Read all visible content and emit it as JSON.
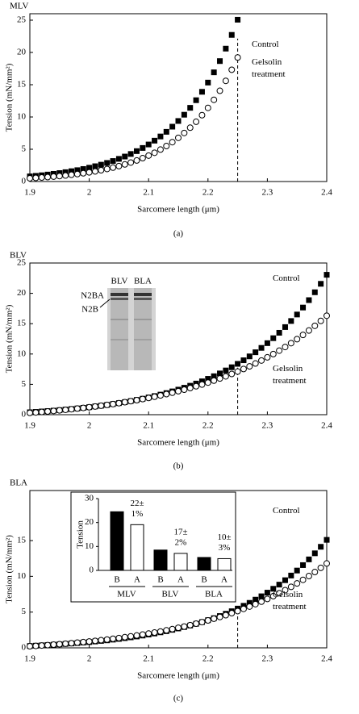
{
  "chart_data": [
    {
      "type": "line",
      "title": "MLV",
      "caption": "(a)",
      "xlabel": "Sarcomere length (μm)",
      "ylabel": "Tension (mN/mm²)",
      "x": [
        1.9,
        1.91,
        1.92,
        1.93,
        1.94,
        1.95,
        1.96,
        1.97,
        1.98,
        1.99,
        2,
        2.01,
        2.02,
        2.03,
        2.04,
        2.05,
        2.06,
        2.07,
        2.08,
        2.09,
        2.1,
        2.11,
        2.12,
        2.13,
        2.14,
        2.15,
        2.16,
        2.17,
        2.18,
        2.19,
        2.2,
        2.21,
        2.22,
        2.23,
        2.24,
        2.25
      ],
      "series": [
        {
          "name": "Control",
          "color": "#000000",
          "marker": "square-filled",
          "values": [
            0.8,
            0.88,
            0.97,
            1.08,
            1.19,
            1.31,
            1.45,
            1.6,
            1.76,
            1.94,
            2.14,
            2.37,
            2.61,
            2.88,
            3.18,
            3.51,
            3.87,
            4.27,
            4.71,
            5.2,
            5.74,
            6.33,
            6.98,
            7.7,
            8.5,
            9.38,
            10.35,
            11.42,
            12.6,
            13.9,
            15.33,
            16.92,
            18.66,
            20.59,
            22.72,
            25.07
          ]
        },
        {
          "name": "Gelsolin treatment",
          "color": "#000000",
          "marker": "circle-open",
          "values": [
            0.5,
            0.56,
            0.62,
            0.68,
            0.76,
            0.84,
            0.93,
            1.04,
            1.15,
            1.28,
            1.42,
            1.57,
            1.75,
            1.94,
            2.15,
            2.39,
            2.65,
            2.94,
            3.26,
            3.62,
            4.02,
            4.46,
            4.95,
            5.5,
            6.1,
            6.77,
            7.52,
            8.34,
            9.26,
            10.28,
            11.41,
            12.66,
            14.06,
            15.6,
            17.32,
            19.22
          ]
        }
      ],
      "xlim": [
        1.9,
        2.4
      ],
      "xticks": [
        1.9,
        2,
        2.1,
        2.2,
        2.3,
        2.4
      ],
      "ylim": [
        0,
        26
      ],
      "yticks": [
        0,
        5,
        10,
        15,
        20,
        25
      ],
      "vline": 2.25
    },
    {
      "type": "line",
      "title": "BLV",
      "caption": "(b)",
      "xlabel": "Sarcomere length (μm)",
      "ylabel": "Tension (mN/mm²)",
      "x": [
        1.9,
        1.91,
        1.92,
        1.93,
        1.94,
        1.95,
        1.96,
        1.97,
        1.98,
        1.99,
        2,
        2.01,
        2.02,
        2.03,
        2.04,
        2.05,
        2.06,
        2.07,
        2.08,
        2.09,
        2.1,
        2.11,
        2.12,
        2.13,
        2.14,
        2.15,
        2.16,
        2.17,
        2.18,
        2.19,
        2.2,
        2.21,
        2.22,
        2.23,
        2.24,
        2.25,
        2.26,
        2.27,
        2.28,
        2.29,
        2.3,
        2.31,
        2.32,
        2.33,
        2.34,
        2.35,
        2.36,
        2.37,
        2.38,
        2.39,
        2.4
      ],
      "series": [
        {
          "name": "Control",
          "color": "#000000",
          "marker": "square-filled",
          "values": [
            0.4,
            0.46,
            0.53,
            0.6,
            0.67,
            0.75,
            0.84,
            0.93,
            1.03,
            1.13,
            1.24,
            1.36,
            1.48,
            1.61,
            1.76,
            1.91,
            2.07,
            2.25,
            2.43,
            2.63,
            2.84,
            3.07,
            3.31,
            3.56,
            3.84,
            4.13,
            4.44,
            4.77,
            5.13,
            5.5,
            5.91,
            6.34,
            6.8,
            7.29,
            7.82,
            8.38,
            8.97,
            9.61,
            10.29,
            11.01,
            11.79,
            12.61,
            13.5,
            14.44,
            15.44,
            16.51,
            17.66,
            18.88,
            20.18,
            21.57,
            23.06
          ]
        },
        {
          "name": "Gelsolin treatment",
          "color": "#000000",
          "marker": "circle-open",
          "values": [
            0.3,
            0.37,
            0.45,
            0.53,
            0.62,
            0.71,
            0.8,
            0.9,
            1.01,
            1.12,
            1.23,
            1.35,
            1.48,
            1.61,
            1.75,
            1.9,
            2.06,
            2.22,
            2.39,
            2.57,
            2.76,
            2.96,
            3.17,
            3.39,
            3.62,
            3.87,
            4.12,
            4.39,
            4.68,
            4.97,
            5.29,
            5.62,
            5.96,
            6.32,
            6.71,
            7.11,
            7.53,
            7.97,
            8.44,
            8.93,
            9.45,
            9.99,
            10.56,
            11.16,
            11.79,
            12.45,
            13.15,
            13.88,
            14.65,
            15.46,
            16.31
          ]
        }
      ],
      "xlim": [
        1.9,
        2.4
      ],
      "xticks": [
        1.9,
        2,
        2.1,
        2.2,
        2.3,
        2.4
      ],
      "ylim": [
        0,
        25
      ],
      "yticks": [
        0,
        5,
        10,
        15,
        20,
        25
      ],
      "vline": 2.25,
      "gel_labels": {
        "lanes": [
          "BLV",
          "BLA"
        ],
        "bands": [
          "N2BA",
          "N2B"
        ]
      }
    },
    {
      "type": "line",
      "title": "BLA",
      "caption": "(c)",
      "xlabel": "Sarcomere length (μm)",
      "ylabel": "Tension (mN/mm²)",
      "x": [
        1.9,
        1.91,
        1.92,
        1.93,
        1.94,
        1.95,
        1.96,
        1.97,
        1.98,
        1.99,
        2,
        2.01,
        2.02,
        2.03,
        2.04,
        2.05,
        2.06,
        2.07,
        2.08,
        2.09,
        2.1,
        2.11,
        2.12,
        2.13,
        2.14,
        2.15,
        2.16,
        2.17,
        2.18,
        2.19,
        2.2,
        2.21,
        2.22,
        2.23,
        2.24,
        2.25,
        2.26,
        2.27,
        2.28,
        2.29,
        2.3,
        2.31,
        2.32,
        2.33,
        2.34,
        2.35,
        2.36,
        2.37,
        2.38,
        2.39,
        2.4
      ],
      "series": [
        {
          "name": "Control",
          "color": "#000000",
          "marker": "square-filled",
          "values": [
            0.26,
            0.3,
            0.35,
            0.39,
            0.44,
            0.49,
            0.55,
            0.61,
            0.67,
            0.74,
            0.81,
            0.89,
            0.97,
            1.05,
            1.15,
            1.25,
            1.36,
            1.47,
            1.59,
            1.72,
            1.86,
            2.01,
            2.17,
            2.33,
            2.52,
            2.71,
            2.91,
            3.12,
            3.36,
            3.6,
            3.87,
            4.15,
            4.45,
            4.77,
            5.12,
            5.49,
            5.88,
            6.29,
            6.74,
            7.21,
            7.72,
            8.26,
            8.84,
            9.46,
            10.11,
            10.81,
            11.57,
            12.37,
            13.22,
            14.13,
            15.1
          ]
        },
        {
          "name": "Gelsolin treatment",
          "color": "#000000",
          "marker": "circle-open",
          "values": [
            0.22,
            0.27,
            0.33,
            0.38,
            0.45,
            0.51,
            0.58,
            0.65,
            0.73,
            0.81,
            0.89,
            0.98,
            1.07,
            1.16,
            1.27,
            1.37,
            1.49,
            1.61,
            1.73,
            1.86,
            2,
            2.14,
            2.29,
            2.45,
            2.62,
            2.8,
            2.98,
            3.18,
            3.39,
            3.6,
            3.83,
            4.07,
            4.31,
            4.57,
            4.85,
            5.14,
            5.45,
            5.77,
            6.11,
            6.46,
            6.84,
            7.23,
            7.64,
            8.07,
            8.53,
            9.01,
            9.51,
            10.04,
            10.6,
            11.19,
            11.8
          ]
        }
      ],
      "xlim": [
        1.9,
        2.4
      ],
      "xticks": [
        1.9,
        2,
        2.1,
        2.2,
        2.3,
        2.4
      ],
      "ylim": [
        0,
        22
      ],
      "yticks": [
        0,
        5,
        10,
        15
      ],
      "vline": 2.25,
      "inset": {
        "type": "bar",
        "ylabel": "Tension",
        "categories": [
          "B",
          "A",
          "B",
          "A",
          "B",
          "A"
        ],
        "groups": [
          "MLV",
          "BLV",
          "BLA"
        ],
        "values": [
          24.5,
          19.1,
          8.5,
          7.1,
          5.4,
          4.9
        ],
        "colors": [
          "#000000",
          "#ffffff",
          "#000000",
          "#ffffff",
          "#000000",
          "#ffffff"
        ],
        "ylim": [
          0,
          30
        ],
        "yticks": [
          0,
          10,
          20,
          30
        ],
        "annotations": [
          [
            "22±",
            "1%"
          ],
          [
            "17±",
            "2%"
          ],
          [
            "10±",
            "3%"
          ]
        ]
      }
    }
  ]
}
